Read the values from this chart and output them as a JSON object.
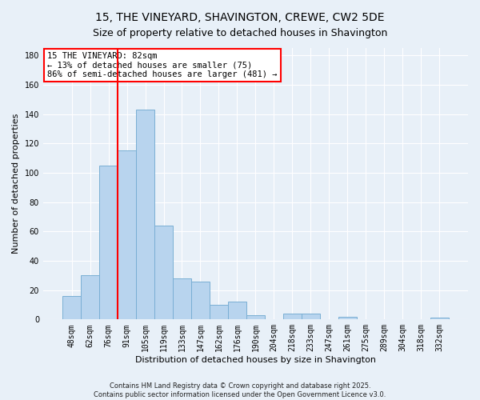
{
  "title": "15, THE VINEYARD, SHAVINGTON, CREWE, CW2 5DE",
  "subtitle": "Size of property relative to detached houses in Shavington",
  "xlabel": "Distribution of detached houses by size in Shavington",
  "ylabel": "Number of detached properties",
  "bin_labels": [
    "48sqm",
    "62sqm",
    "76sqm",
    "91sqm",
    "105sqm",
    "119sqm",
    "133sqm",
    "147sqm",
    "162sqm",
    "176sqm",
    "190sqm",
    "204sqm",
    "218sqm",
    "233sqm",
    "247sqm",
    "261sqm",
    "275sqm",
    "289sqm",
    "304sqm",
    "318sqm",
    "332sqm"
  ],
  "bar_values": [
    16,
    30,
    105,
    115,
    143,
    64,
    28,
    26,
    10,
    12,
    3,
    0,
    4,
    4,
    0,
    2,
    0,
    0,
    0,
    0,
    1
  ],
  "bar_color": "#b8d4ee",
  "bar_edge_color": "#7aafd4",
  "vline_x": 2.5,
  "vline_color": "red",
  "ylim": [
    0,
    185
  ],
  "yticks": [
    0,
    20,
    40,
    60,
    80,
    100,
    120,
    140,
    160,
    180
  ],
  "annotation_title": "15 THE VINEYARD: 82sqm",
  "annotation_line1": "← 13% of detached houses are smaller (75)",
  "annotation_line2": "86% of semi-detached houses are larger (481) →",
  "footer1": "Contains HM Land Registry data © Crown copyright and database right 2025.",
  "footer2": "Contains public sector information licensed under the Open Government Licence v3.0.",
  "background_color": "#e8f0f8",
  "plot_background": "#e8f0f8",
  "grid_color": "#ffffff",
  "title_fontsize": 10,
  "subtitle_fontsize": 9,
  "xlabel_fontsize": 8,
  "ylabel_fontsize": 8,
  "tick_fontsize": 7,
  "annotation_fontsize": 7.5,
  "footer_fontsize": 6
}
